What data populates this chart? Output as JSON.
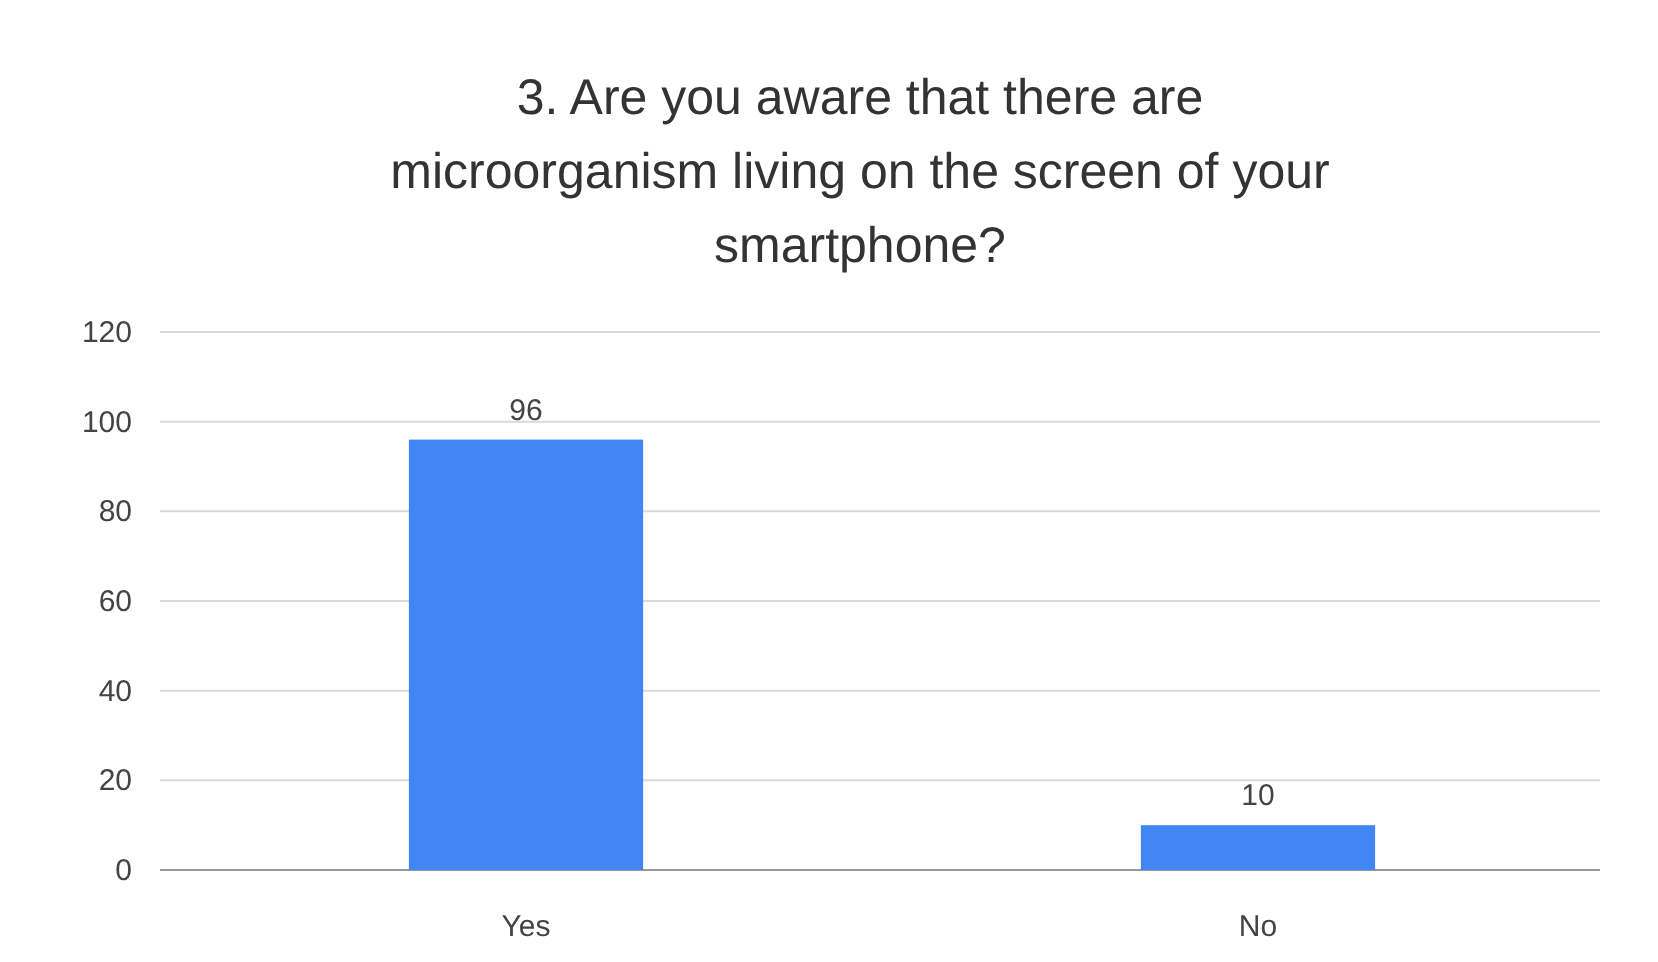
{
  "chart_data": {
    "type": "bar",
    "title": "3. Are you aware that there are\nmicroorganism living on the screen of your\nsmartphone?",
    "categories": [
      "Yes",
      "No"
    ],
    "values": [
      96,
      10
    ],
    "color": "#4285f4",
    "ylim": [
      0,
      120
    ],
    "yticks": [
      0,
      20,
      40,
      60,
      80,
      100,
      120
    ],
    "grid": "y",
    "data_labels": true
  }
}
